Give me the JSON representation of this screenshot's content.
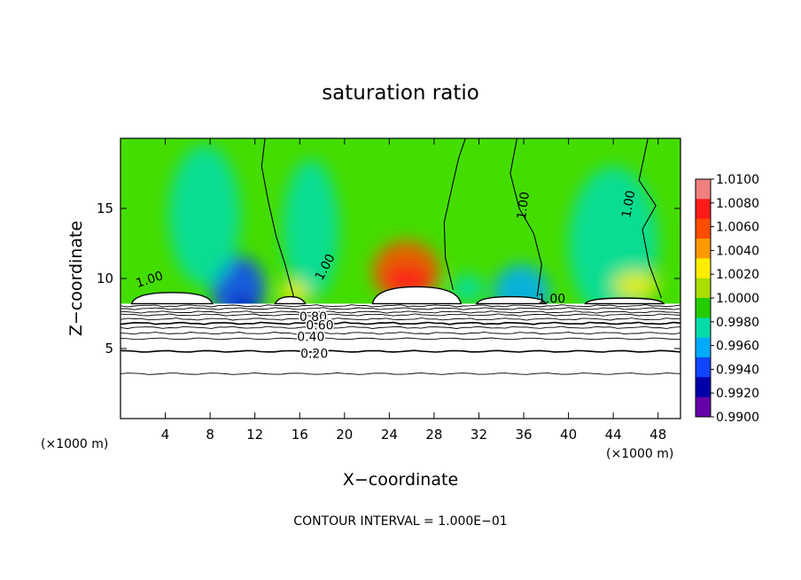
{
  "chart_data": {
    "type": "heatmap",
    "title": "saturation ratio",
    "xlabel": "X−coordinate",
    "ylabel": "Z−coordinate",
    "x_unit_left": "(×1000 m)",
    "x_unit_right": "(×1000 m)",
    "footer": "CONTOUR INTERVAL = 1.000E−01",
    "xlim": [
      0,
      50
    ],
    "ylim": [
      0,
      20
    ],
    "x_ticks": [
      4,
      8,
      12,
      16,
      20,
      24,
      28,
      32,
      36,
      40,
      44,
      48
    ],
    "y_ticks": [
      5,
      10,
      15
    ],
    "colorbar": {
      "levels": [
        "1.0100",
        "1.0080",
        "1.0060",
        "1.0040",
        "1.0020",
        "1.0000",
        "0.9980",
        "0.9960",
        "0.9940",
        "0.9920",
        "0.9900"
      ],
      "colors": [
        "#f08080",
        "#ff1a1a",
        "#ff4d00",
        "#ff9900",
        "#ffee00",
        "#aadd00",
        "#22cc00",
        "#00ddaa",
        "#00aaff",
        "#1144ff",
        "#0000aa",
        "#6600aa"
      ]
    },
    "base_color": "#44dd00",
    "contour_labels": [
      {
        "text": "1.00",
        "x": 2.6,
        "z": 9.9,
        "rot": -18
      },
      {
        "text": "1.00",
        "x": 18.3,
        "z": 10.8,
        "rot": -62
      },
      {
        "text": "1.00",
        "x": 36.0,
        "z": 15.2,
        "rot": -82
      },
      {
        "text": "1.00",
        "x": 45.4,
        "z": 15.3,
        "rot": -80
      },
      {
        "text": "1.00",
        "x": 38.5,
        "z": 8.5,
        "rot": 0
      },
      {
        "text": "0.80",
        "x": 17.2,
        "z": 7.2,
        "rot": 0
      },
      {
        "text": "0.60",
        "x": 17.8,
        "z": 6.6,
        "rot": 0
      },
      {
        "text": "0.40",
        "x": 17.0,
        "z": 5.8,
        "rot": 0
      },
      {
        "text": "0.20",
        "x": 17.3,
        "z": 4.6,
        "rot": 0
      }
    ],
    "cloud_regions": [
      {
        "x0": 1.0,
        "x1": 8.2,
        "ztop": 9.0
      },
      {
        "x0": 13.8,
        "x1": 16.5,
        "ztop": 8.7
      },
      {
        "x0": 22.5,
        "x1": 30.4,
        "ztop": 9.4
      },
      {
        "x0": 31.8,
        "x1": 38.0,
        "ztop": 8.7
      },
      {
        "x0": 41.5,
        "x1": 48.5,
        "ztop": 8.6
      }
    ],
    "anomalies": [
      {
        "x": 25.5,
        "z": 10.5,
        "rx": 3.0,
        "rz": 2.2,
        "value": 1.006
      },
      {
        "x": 25.6,
        "z": 9.9,
        "rx": 2.0,
        "rz": 1.0,
        "value": 1.009
      },
      {
        "x": 10.5,
        "z": 9.3,
        "rx": 2.4,
        "rz": 2.3,
        "value": 0.993
      },
      {
        "x": 11.0,
        "z": 8.0,
        "rx": 1.2,
        "rz": 0.6,
        "value": 0.9915
      },
      {
        "x": 7.5,
        "z": 14.5,
        "rx": 3.2,
        "rz": 5.0,
        "value": 0.9968
      },
      {
        "x": 17.0,
        "z": 13.5,
        "rx": 2.5,
        "rz": 5.0,
        "value": 0.997
      },
      {
        "x": 35.8,
        "z": 9.0,
        "rx": 2.5,
        "rz": 2.0,
        "value": 0.9955
      },
      {
        "x": 44.0,
        "z": 12.5,
        "rx": 4.0,
        "rz": 5.5,
        "value": 0.997
      },
      {
        "x": 46.0,
        "z": 9.5,
        "rx": 2.0,
        "rz": 1.0,
        "value": 1.003
      },
      {
        "x": 15.5,
        "z": 9.0,
        "rx": 1.3,
        "rz": 0.8,
        "value": 1.003
      },
      {
        "x": 31.0,
        "z": 9.3,
        "rx": 1.5,
        "rz": 1.0,
        "value": 0.996
      }
    ]
  }
}
